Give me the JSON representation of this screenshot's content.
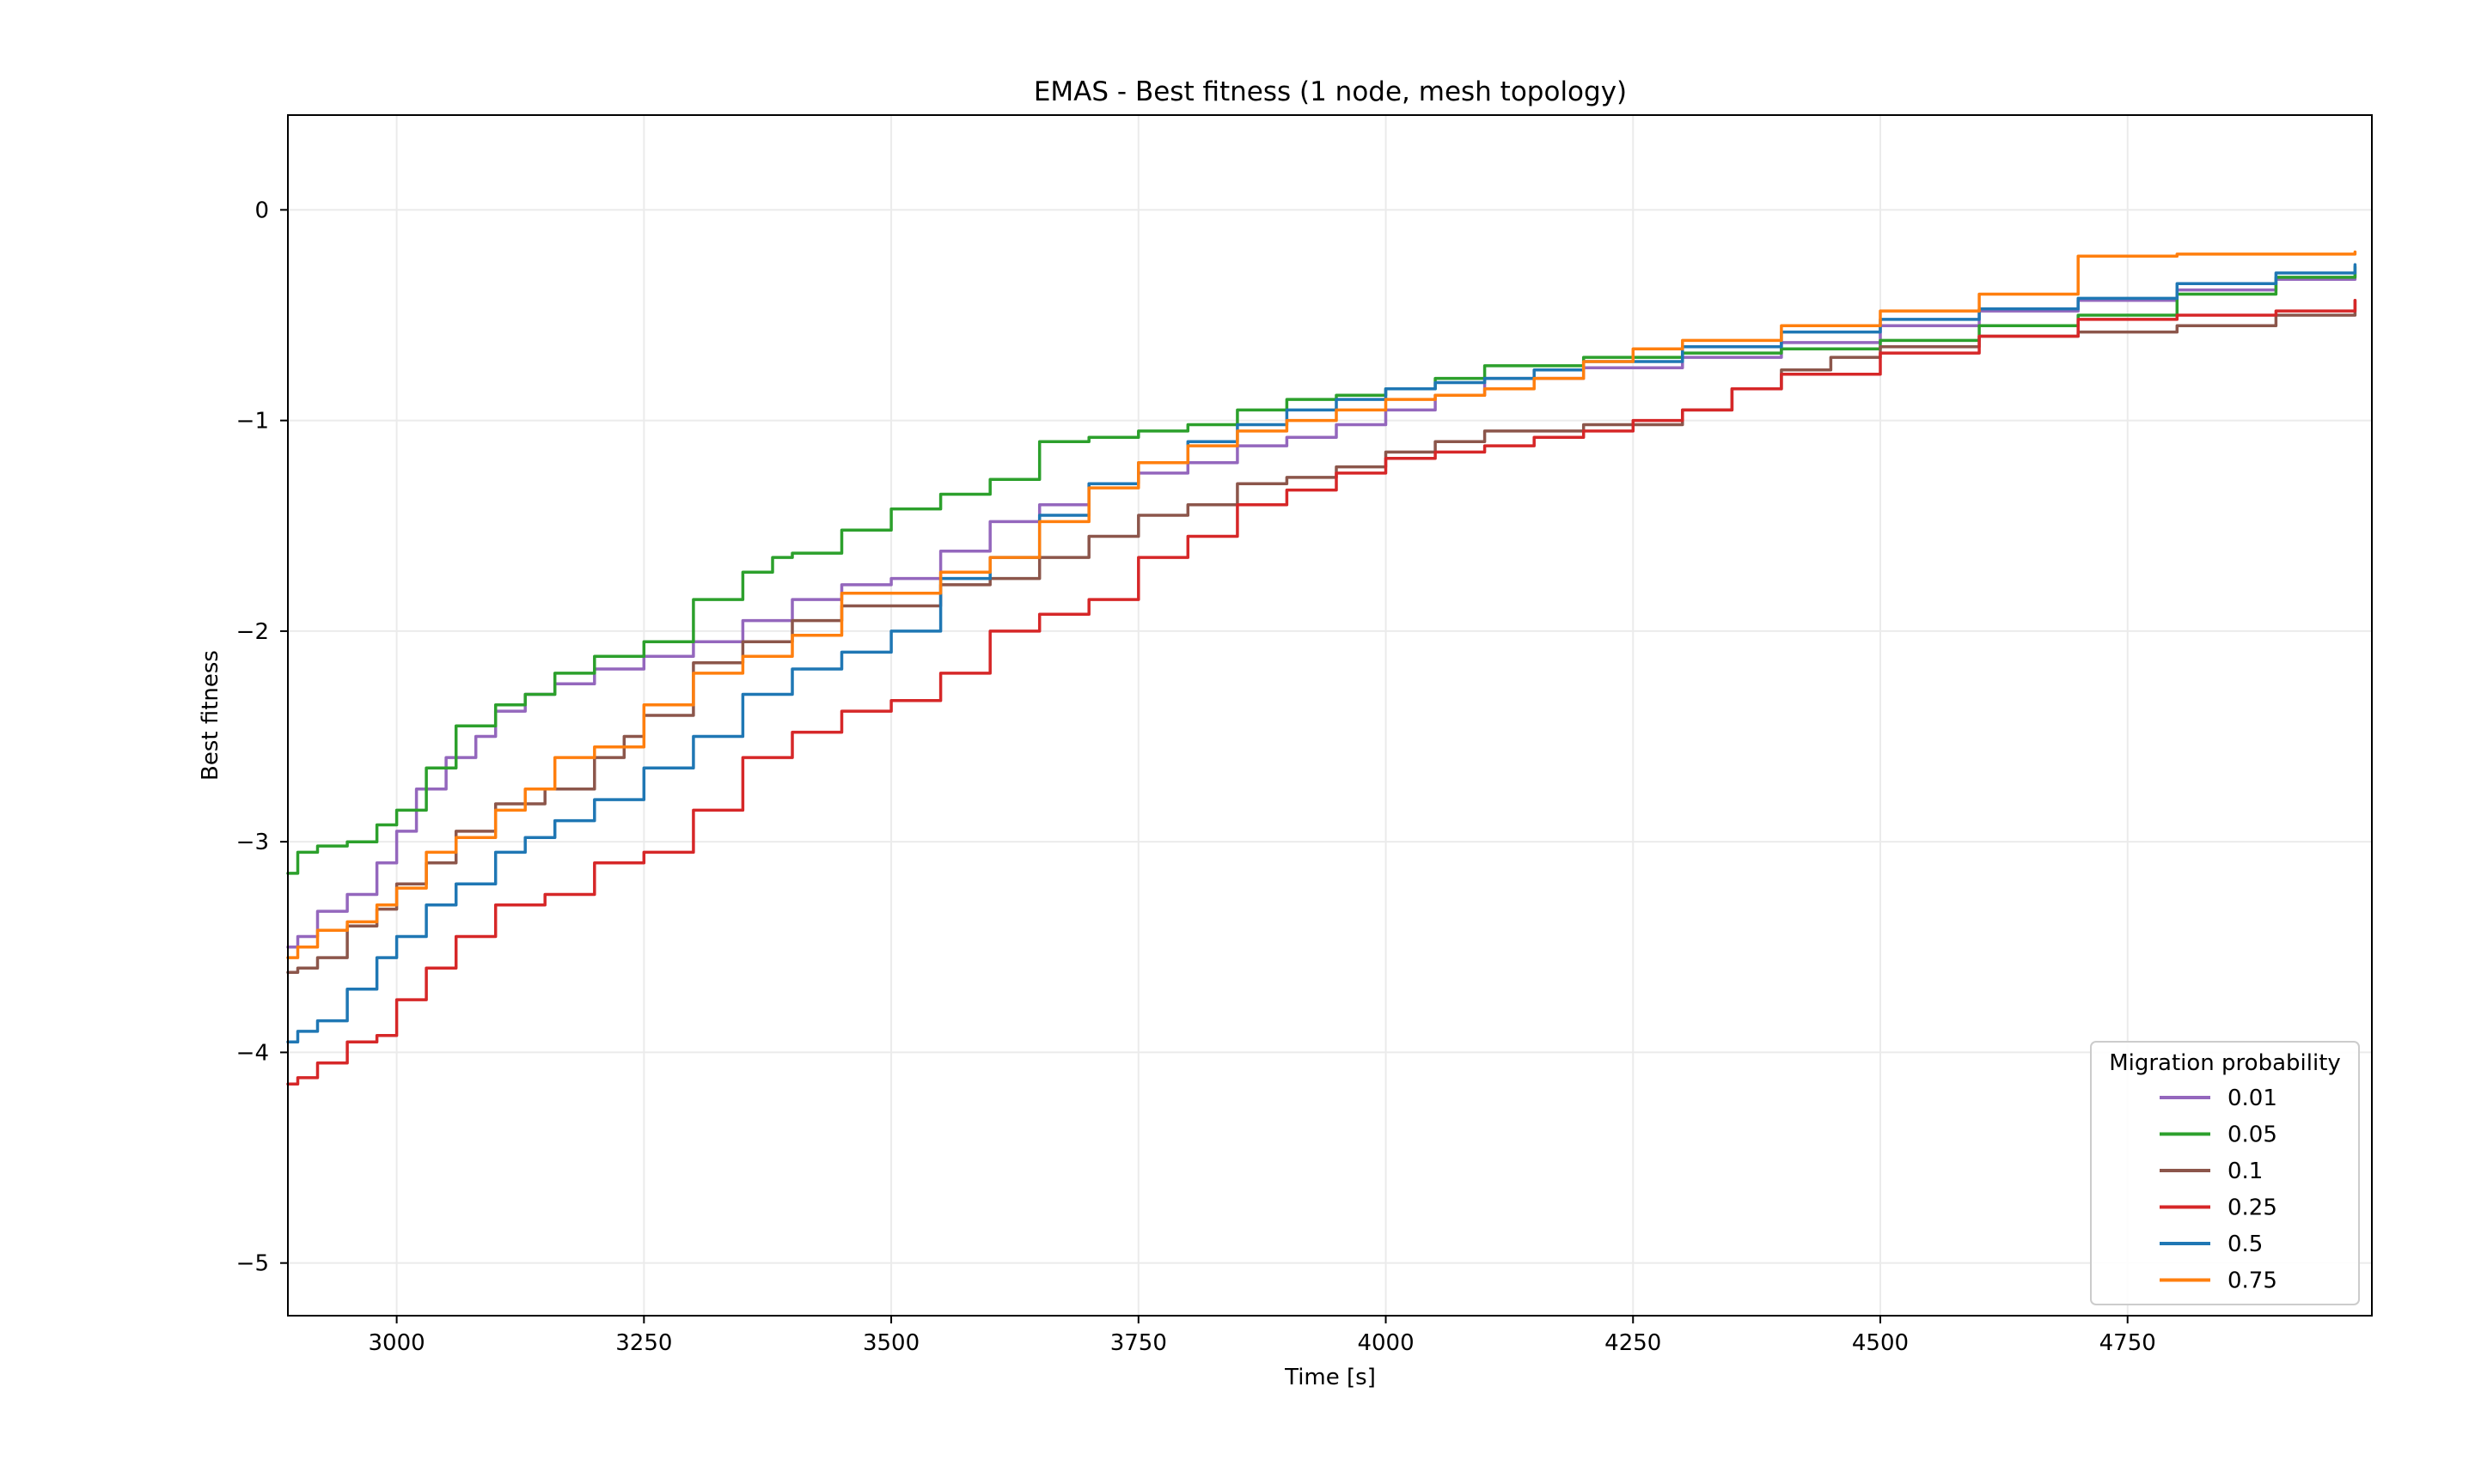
{
  "chart_data": {
    "type": "line",
    "title": "EMAS - Best fitness (1 node, mesh topology)",
    "xlabel": "Time [s]",
    "ylabel": "Best fitness",
    "xlim": [
      2890,
      4997
    ],
    "ylim": [
      -5.25,
      0.45
    ],
    "xticks": [
      3000,
      3250,
      3500,
      3750,
      4000,
      4250,
      4500,
      4750
    ],
    "yticks": [
      0,
      -1,
      -2,
      -3,
      -4,
      -5
    ],
    "xtick_labels": [
      "3000",
      "3250",
      "3500",
      "3750",
      "4000",
      "4250",
      "4500",
      "4750"
    ],
    "ytick_labels": [
      "0",
      "−1",
      "−2",
      "−3",
      "−4",
      "−5"
    ],
    "grid": true,
    "legend": {
      "title": "Migration probability",
      "position": "lower right"
    },
    "series": [
      {
        "name": "0.01",
        "color": "#9467bd",
        "x": [
          2890,
          2900,
          2920,
          2950,
          2980,
          3000,
          3020,
          3050,
          3080,
          3100,
          3130,
          3160,
          3200,
          3250,
          3300,
          3350,
          3400,
          3450,
          3500,
          3550,
          3600,
          3650,
          3700,
          3750,
          3800,
          3850,
          3900,
          3950,
          4000,
          4050,
          4100,
          4200,
          4300,
          4400,
          4500,
          4600,
          4700,
          4800,
          4900,
          4980
        ],
        "y": [
          -3.5,
          -3.45,
          -3.33,
          -3.25,
          -3.1,
          -2.95,
          -2.75,
          -2.6,
          -2.5,
          -2.38,
          -2.3,
          -2.25,
          -2.18,
          -2.12,
          -2.05,
          -1.95,
          -1.85,
          -1.78,
          -1.75,
          -1.62,
          -1.48,
          -1.4,
          -1.3,
          -1.25,
          -1.2,
          -1.12,
          -1.08,
          -1.02,
          -0.95,
          -0.88,
          -0.8,
          -0.75,
          -0.7,
          -0.63,
          -0.55,
          -0.48,
          -0.43,
          -0.38,
          -0.33,
          -0.3
        ]
      },
      {
        "name": "0.05",
        "color": "#2ca02c",
        "x": [
          2890,
          2900,
          2920,
          2950,
          2980,
          3000,
          3030,
          3060,
          3100,
          3130,
          3160,
          3200,
          3250,
          3300,
          3350,
          3380,
          3400,
          3450,
          3500,
          3550,
          3600,
          3650,
          3700,
          3750,
          3800,
          3850,
          3900,
          3950,
          4000,
          4050,
          4100,
          4200,
          4300,
          4400,
          4500,
          4600,
          4700,
          4800,
          4900,
          4980
        ],
        "y": [
          -3.15,
          -3.05,
          -3.02,
          -3.0,
          -2.92,
          -2.85,
          -2.65,
          -2.45,
          -2.35,
          -2.3,
          -2.2,
          -2.12,
          -2.05,
          -1.85,
          -1.72,
          -1.65,
          -1.63,
          -1.52,
          -1.42,
          -1.35,
          -1.28,
          -1.1,
          -1.08,
          -1.05,
          -1.02,
          -0.95,
          -0.9,
          -0.88,
          -0.85,
          -0.8,
          -0.74,
          -0.7,
          -0.68,
          -0.66,
          -0.62,
          -0.55,
          -0.5,
          -0.4,
          -0.32,
          -0.27
        ]
      },
      {
        "name": "0.1",
        "color": "#8c564b",
        "x": [
          2890,
          2900,
          2920,
          2950,
          2980,
          3000,
          3030,
          3060,
          3100,
          3150,
          3200,
          3230,
          3250,
          3300,
          3350,
          3400,
          3450,
          3500,
          3550,
          3600,
          3650,
          3700,
          3750,
          3800,
          3850,
          3900,
          3950,
          4000,
          4050,
          4100,
          4200,
          4300,
          4350,
          4400,
          4450,
          4500,
          4600,
          4700,
          4800,
          4900,
          4980
        ],
        "y": [
          -3.62,
          -3.6,
          -3.55,
          -3.4,
          -3.32,
          -3.2,
          -3.1,
          -2.95,
          -2.82,
          -2.75,
          -2.6,
          -2.5,
          -2.4,
          -2.15,
          -2.05,
          -1.95,
          -1.88,
          -1.88,
          -1.78,
          -1.75,
          -1.65,
          -1.55,
          -1.45,
          -1.4,
          -1.3,
          -1.27,
          -1.22,
          -1.15,
          -1.1,
          -1.05,
          -1.02,
          -0.95,
          -0.85,
          -0.76,
          -0.7,
          -0.65,
          -0.6,
          -0.58,
          -0.55,
          -0.5,
          -0.43
        ]
      },
      {
        "name": "0.25",
        "color": "#d62728",
        "x": [
          2890,
          2900,
          2920,
          2950,
          2980,
          3000,
          3030,
          3060,
          3100,
          3150,
          3200,
          3250,
          3300,
          3350,
          3400,
          3450,
          3500,
          3550,
          3600,
          3650,
          3700,
          3750,
          3800,
          3850,
          3900,
          3950,
          4000,
          4050,
          4100,
          4150,
          4200,
          4250,
          4300,
          4350,
          4400,
          4500,
          4600,
          4700,
          4800,
          4900,
          4980
        ],
        "y": [
          -4.15,
          -4.12,
          -4.05,
          -3.95,
          -3.92,
          -3.75,
          -3.6,
          -3.45,
          -3.3,
          -3.25,
          -3.1,
          -3.05,
          -2.85,
          -2.6,
          -2.48,
          -2.38,
          -2.33,
          -2.2,
          -2.0,
          -1.92,
          -1.85,
          -1.65,
          -1.55,
          -1.4,
          -1.33,
          -1.25,
          -1.18,
          -1.15,
          -1.12,
          -1.08,
          -1.05,
          -1.0,
          -0.95,
          -0.85,
          -0.78,
          -0.68,
          -0.6,
          -0.52,
          -0.5,
          -0.48,
          -0.43
        ]
      },
      {
        "name": "0.5",
        "color": "#1f77b4",
        "x": [
          2890,
          2900,
          2920,
          2950,
          2980,
          3000,
          3030,
          3060,
          3100,
          3130,
          3160,
          3200,
          3250,
          3300,
          3350,
          3400,
          3450,
          3500,
          3550,
          3600,
          3650,
          3700,
          3750,
          3800,
          3850,
          3900,
          3950,
          4000,
          4050,
          4100,
          4150,
          4200,
          4300,
          4400,
          4500,
          4600,
          4700,
          4800,
          4900,
          4980
        ],
        "y": [
          -3.95,
          -3.9,
          -3.85,
          -3.7,
          -3.55,
          -3.45,
          -3.3,
          -3.2,
          -3.05,
          -2.98,
          -2.9,
          -2.8,
          -2.65,
          -2.5,
          -2.3,
          -2.18,
          -2.1,
          -2.0,
          -1.75,
          -1.65,
          -1.45,
          -1.3,
          -1.2,
          -1.1,
          -1.02,
          -0.95,
          -0.9,
          -0.85,
          -0.82,
          -0.8,
          -0.76,
          -0.72,
          -0.65,
          -0.58,
          -0.52,
          -0.47,
          -0.42,
          -0.35,
          -0.3,
          -0.26
        ]
      },
      {
        "name": "0.75",
        "color": "#ff7f0e",
        "x": [
          2890,
          2900,
          2920,
          2950,
          2980,
          3000,
          3030,
          3060,
          3100,
          3130,
          3160,
          3200,
          3250,
          3300,
          3350,
          3400,
          3450,
          3500,
          3550,
          3600,
          3650,
          3700,
          3750,
          3800,
          3850,
          3900,
          3950,
          4000,
          4050,
          4100,
          4150,
          4200,
          4250,
          4300,
          4400,
          4500,
          4600,
          4700,
          4800,
          4900,
          4980
        ],
        "y": [
          -3.55,
          -3.5,
          -3.42,
          -3.38,
          -3.3,
          -3.22,
          -3.05,
          -2.98,
          -2.85,
          -2.75,
          -2.6,
          -2.55,
          -2.35,
          -2.2,
          -2.12,
          -2.02,
          -1.82,
          -1.82,
          -1.72,
          -1.65,
          -1.48,
          -1.32,
          -1.2,
          -1.12,
          -1.05,
          -1.0,
          -0.95,
          -0.9,
          -0.88,
          -0.85,
          -0.8,
          -0.72,
          -0.66,
          -0.62,
          -0.55,
          -0.48,
          -0.4,
          -0.22,
          -0.21,
          -0.21,
          -0.2
        ]
      }
    ]
  }
}
